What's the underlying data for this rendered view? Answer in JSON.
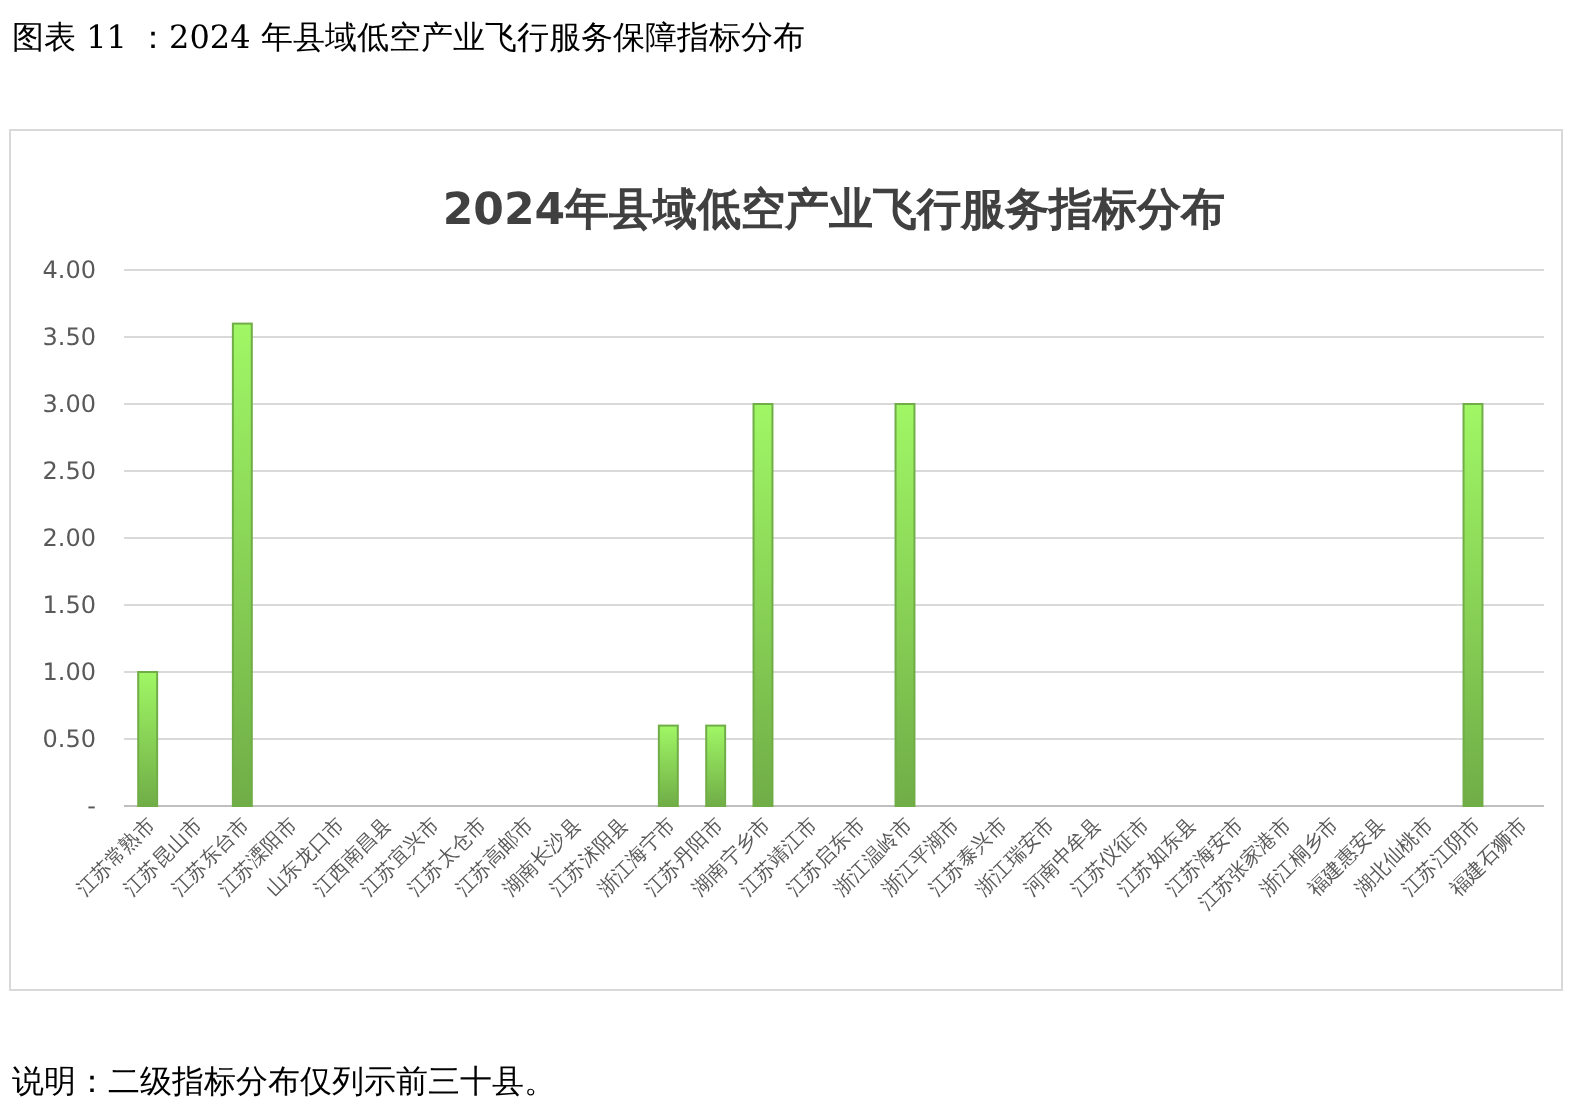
{
  "chart_data": {
    "type": "bar",
    "title": "图表 11 ：2024 年县域低空产业飞行服务保障指标分布",
    "subtitle": "2024年县域低空产业飞行服务指标分布",
    "categories": [
      "江苏常熟市",
      "江苏昆山市",
      "江苏东台市",
      "江苏溧阳市",
      "山东龙口市",
      "江西南昌县",
      "江苏宜兴市",
      "江苏太仓市",
      "江苏高邮市",
      "湖南长沙县",
      "江苏沭阳县",
      "浙江海宁市",
      "江苏丹阳市",
      "湖南宁乡市",
      "江苏靖江市",
      "江苏启东市",
      "浙江温岭市",
      "浙江平湖市",
      "江苏泰兴市",
      "浙江瑞安市",
      "河南中牟县",
      "江苏仪征市",
      "江苏如东县",
      "江苏海安市",
      "江苏张家港市",
      "浙江桐乡市",
      "福建惠安县",
      "湖北仙桃市",
      "江苏江阴市",
      "福建石狮市"
    ],
    "values": [
      1,
      0,
      3.6,
      0,
      0,
      0,
      0,
      0,
      0,
      0,
      0,
      0.6,
      0.6,
      3,
      0,
      0,
      3,
      0,
      0,
      0,
      0,
      0,
      0,
      0,
      0,
      0,
      0,
      0,
      3,
      0
    ],
    "color": "#70ad47",
    "ylim": [
      0,
      4
    ],
    "yticks": [
      {
        "value": 0,
        "label": "-"
      },
      {
        "value": 0.5,
        "label": "0.50"
      },
      {
        "value": 1,
        "label": "1.00"
      },
      {
        "value": 1.5,
        "label": "1.50"
      },
      {
        "value": 2,
        "label": "2.00"
      },
      {
        "value": 2.5,
        "label": "2.50"
      },
      {
        "value": 3,
        "label": "3.00"
      },
      {
        "value": 3.5,
        "label": "3.50"
      },
      {
        "value": 4,
        "label": "4.00"
      }
    ],
    "grid": "y",
    "annotations": [
      "说明：二级指标分布仅列示前三十县。"
    ]
  }
}
